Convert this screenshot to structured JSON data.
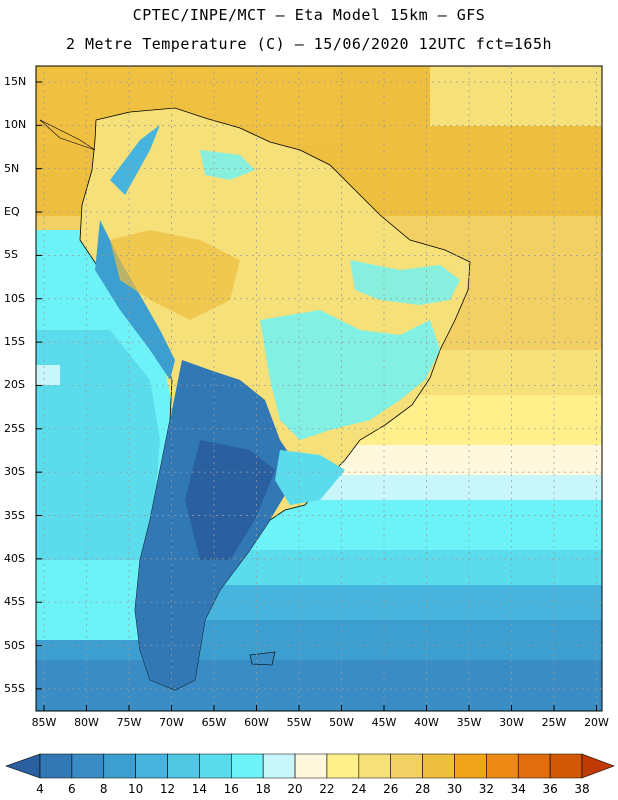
{
  "header": {
    "title_line1": "CPTEC/INPE/MCT –  Eta Model 15km – GFS",
    "title_line2": "2 Metre Temperature (C) – 15/06/2020 12UTC fct=165h"
  },
  "map": {
    "lat_labels": [
      "15N",
      "10N",
      "5N",
      "EQ",
      "5S",
      "10S",
      "15S",
      "20S",
      "25S",
      "30S",
      "35S",
      "40S",
      "45S",
      "50S",
      "55S"
    ],
    "lon_labels": [
      "85W",
      "80W",
      "75W",
      "70W",
      "65W",
      "60W",
      "55W",
      "50W",
      "45W",
      "40W",
      "35W",
      "30W",
      "25W",
      "20W"
    ],
    "grid": true,
    "grid_color": "#9a9a9a"
  },
  "colorbar": {
    "labels": [
      "4",
      "6",
      "8",
      "10",
      "12",
      "14",
      "16",
      "18",
      "20",
      "22",
      "24",
      "26",
      "28",
      "30",
      "32",
      "34",
      "36",
      "38"
    ],
    "colors": [
      "#2a5fa0",
      "#3278b4",
      "#3a8cc4",
      "#3c9fcf",
      "#46b4dc",
      "#50c8e4",
      "#5adcec",
      "#6df3f7",
      "#c8f6fa",
      "#fff8dc",
      "#fff08c",
      "#f6e07a",
      "#f2d064",
      "#eebe3e",
      "#f0a41a",
      "#ec8a14",
      "#e06e0e",
      "#d25808",
      "#c03a04"
    ]
  }
}
